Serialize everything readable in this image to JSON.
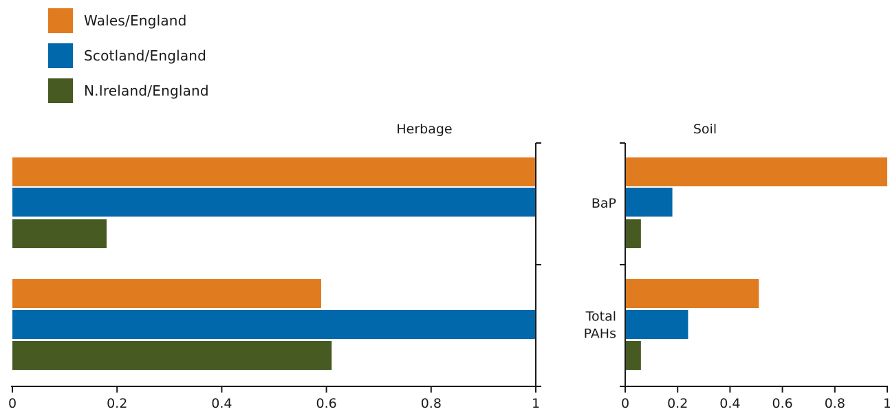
{
  "legend": [
    {
      "label": "Wales/England",
      "color": "#E07B20"
    },
    {
      "label": "Scotland/England",
      "color": "#0068AB"
    },
    {
      "label": "N.Ireland/England",
      "color": "#465A22"
    }
  ],
  "chart_data": [
    {
      "type": "bar",
      "orientation": "horizontal-reversed",
      "title": "Herbage",
      "categories": [
        "",
        ""
      ],
      "series": [
        {
          "name": "Wales/England",
          "values": [
            1.0,
            0.59
          ]
        },
        {
          "name": "Scotland/England",
          "values": [
            1.0,
            1.0
          ]
        },
        {
          "name": "N.Ireland/England",
          "values": [
            0.18,
            0.61
          ]
        }
      ],
      "xlim": [
        1,
        0
      ],
      "tick_labels": [
        "1",
        "0.8",
        "0.6",
        "0.4",
        "0.2",
        "0"
      ],
      "ticks": [
        1,
        0.8,
        0.6,
        0.4,
        0.2,
        0
      ],
      "grid": false,
      "legend_position": "top-left"
    },
    {
      "type": "bar",
      "orientation": "horizontal",
      "title": "Soil",
      "categories": [
        [
          "BaP"
        ],
        [
          "Total",
          "PAHs"
        ]
      ],
      "series": [
        {
          "name": "Wales/England",
          "values": [
            1.0,
            0.51
          ]
        },
        {
          "name": "Scotland/England",
          "values": [
            0.18,
            0.24
          ]
        },
        {
          "name": "N.Ireland/England",
          "values": [
            0.06,
            0.06
          ]
        }
      ],
      "xlim": [
        0,
        1
      ],
      "tick_labels": [
        "0",
        "0.2",
        "0.4",
        "0.6",
        "0.8",
        "1"
      ],
      "ticks": [
        0,
        0.2,
        0.4,
        0.6,
        0.8,
        1
      ],
      "grid": false
    }
  ]
}
